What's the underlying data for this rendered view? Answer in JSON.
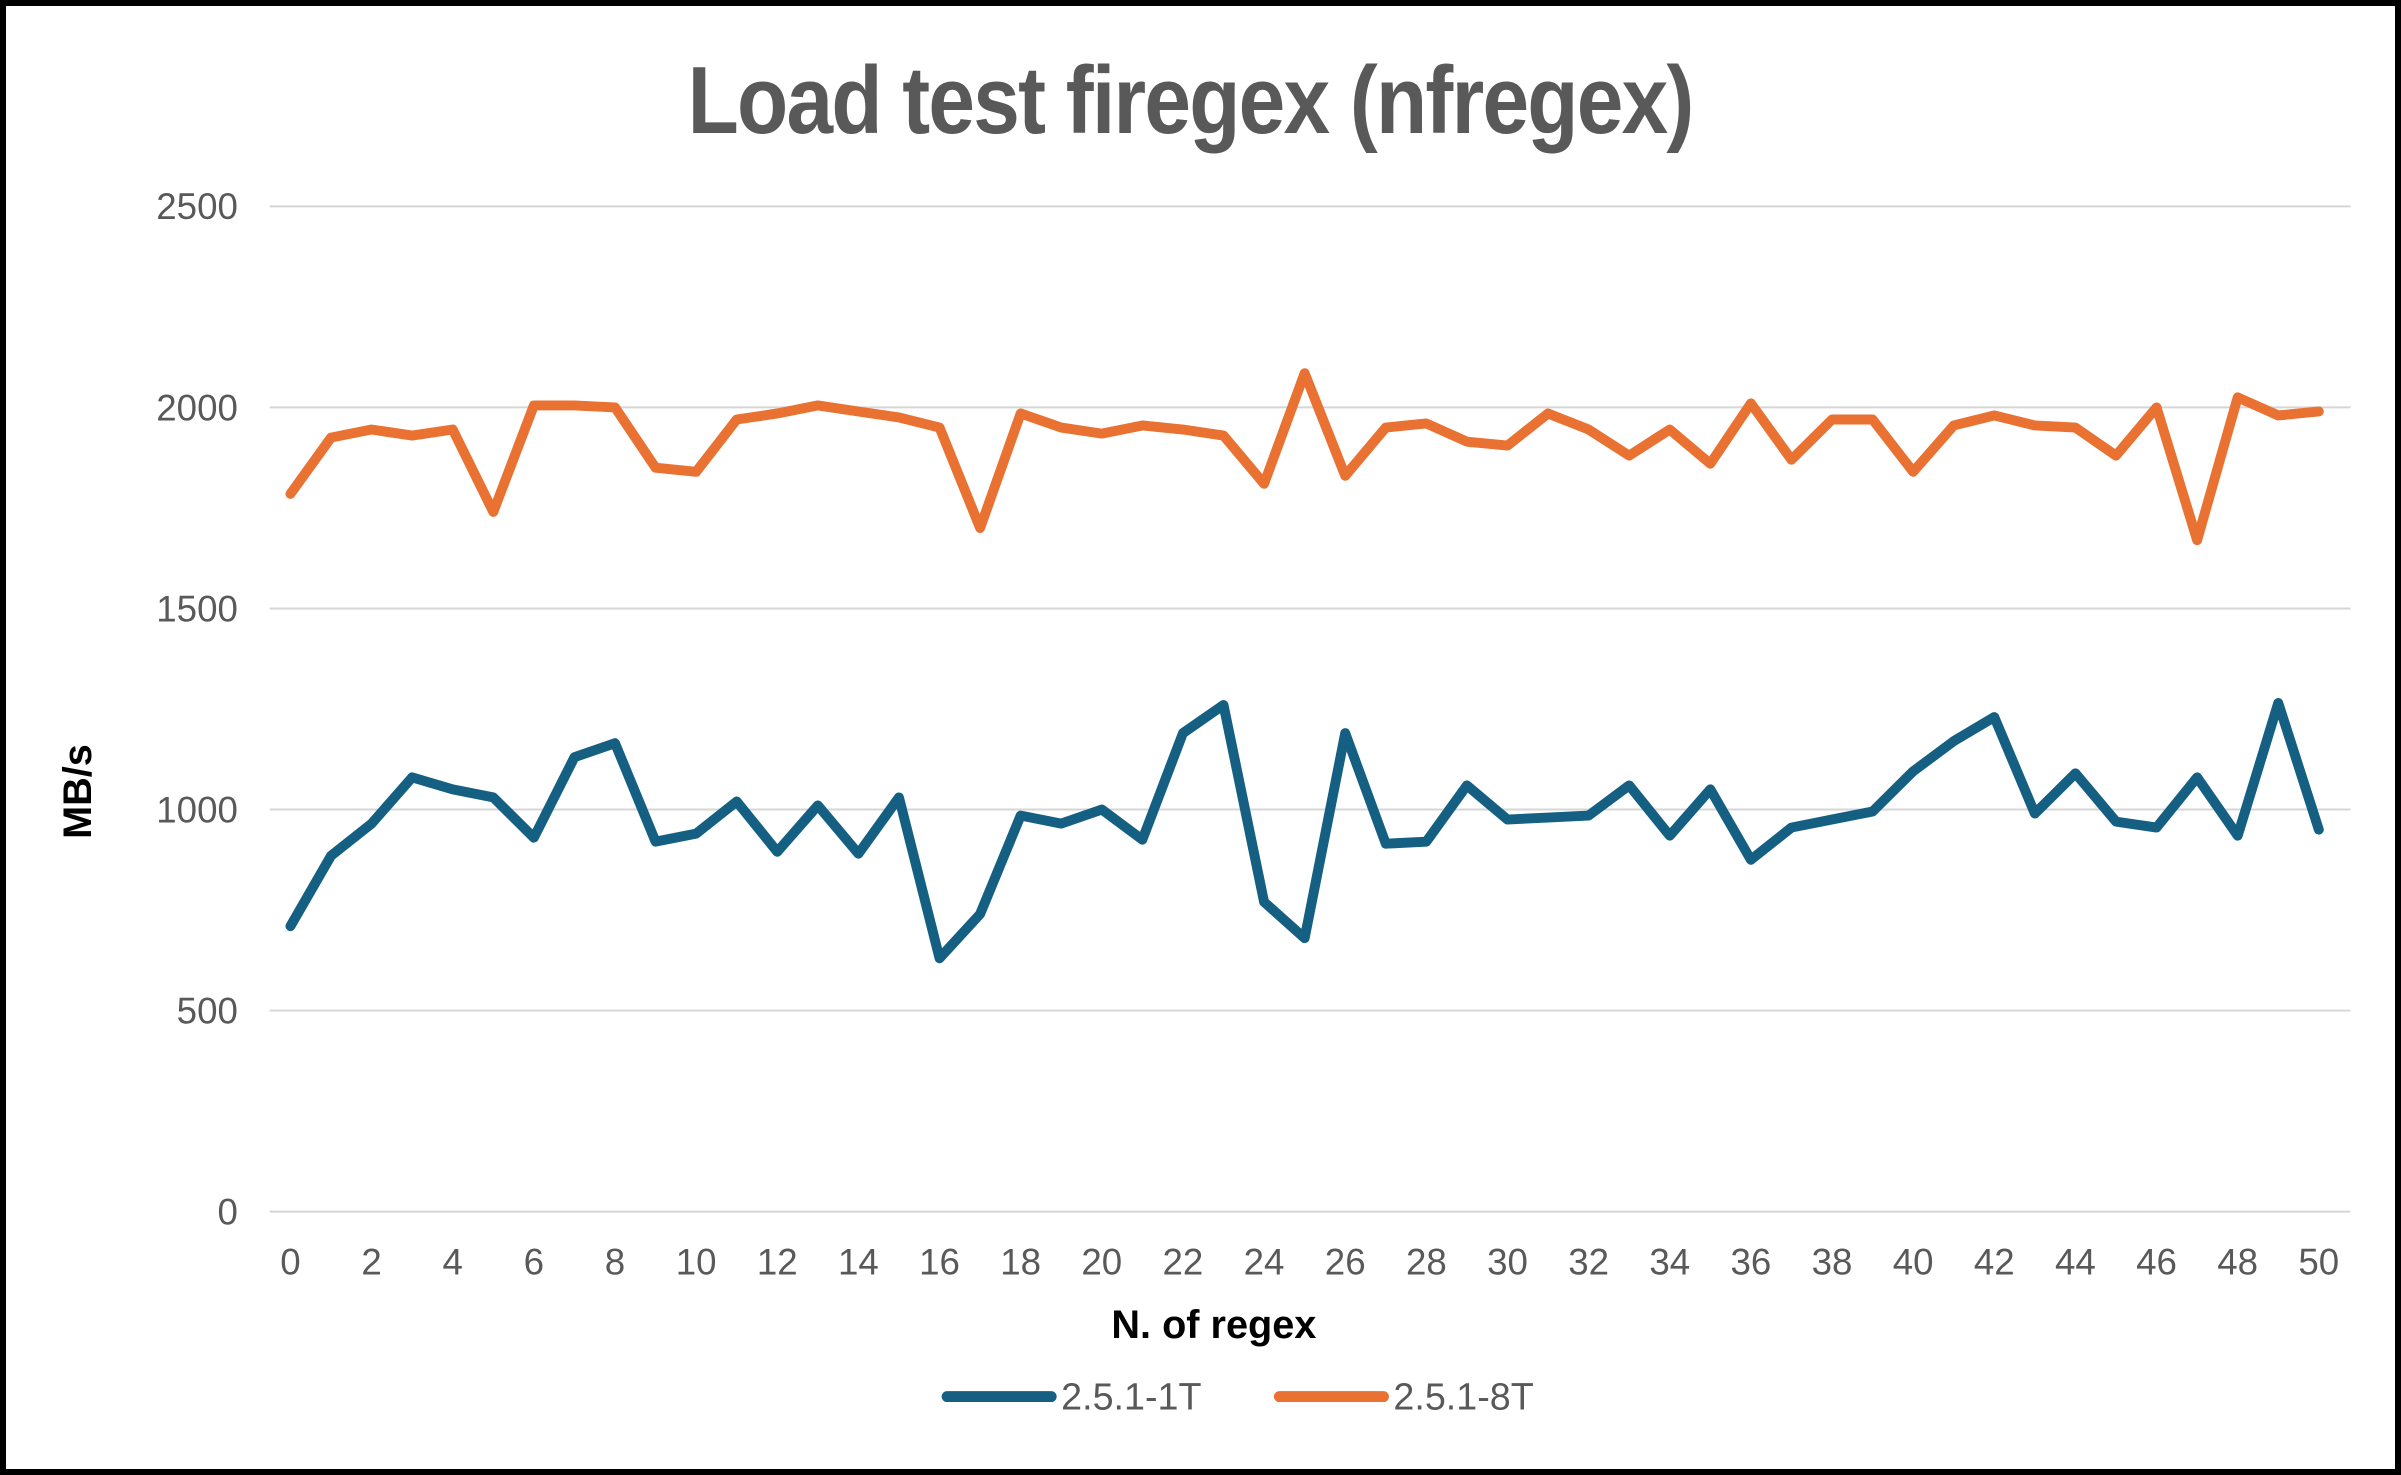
{
  "title": "Load test firegex (nfregex)",
  "colors": {
    "series1_blue": "#156082",
    "series2_orange": "#E97132",
    "title_gray": "#595959",
    "tick_gray": "#595959",
    "gridline_gray": "#D6D6D6",
    "axis_title_black": "#000000",
    "background": "#FFFFFF",
    "frame_border": "#000000"
  },
  "chart_data": {
    "type": "line",
    "title": "Load test firegex (nfregex)",
    "xlabel": "N. of regex",
    "ylabel": "MB/s",
    "x": [
      0,
      1,
      2,
      3,
      4,
      5,
      6,
      7,
      8,
      9,
      10,
      11,
      12,
      13,
      14,
      15,
      16,
      17,
      18,
      19,
      20,
      21,
      22,
      23,
      24,
      25,
      26,
      27,
      28,
      29,
      30,
      31,
      32,
      33,
      34,
      35,
      36,
      37,
      38,
      39,
      40,
      41,
      42,
      43,
      44,
      45,
      46,
      47,
      48,
      49,
      50
    ],
    "x_tick_labels": [
      "0",
      "2",
      "4",
      "6",
      "8",
      "10",
      "12",
      "14",
      "16",
      "18",
      "20",
      "22",
      "24",
      "26",
      "28",
      "30",
      "32",
      "34",
      "36",
      "38",
      "40",
      "42",
      "44",
      "46",
      "48",
      "50"
    ],
    "y_ticks": [
      0,
      500,
      1000,
      1500,
      2000,
      2500
    ],
    "ylim": [
      0,
      2500
    ],
    "grid": "horizontal",
    "legend_position": "bottom",
    "series": [
      {
        "name": "2.5.1-1T",
        "color": "#156082",
        "values": [
          710,
          885,
          965,
          1080,
          1050,
          1030,
          930,
          1130,
          1165,
          920,
          940,
          1020,
          895,
          1010,
          890,
          1030,
          630,
          740,
          985,
          965,
          1000,
          925,
          1190,
          1260,
          770,
          680,
          1190,
          915,
          920,
          1060,
          975,
          980,
          985,
          1060,
          935,
          1050,
          875,
          955,
          975,
          995,
          1095,
          1170,
          1230,
          990,
          1090,
          970,
          955,
          1080,
          935,
          1265,
          950
        ]
      },
      {
        "name": "2.5.1-8T",
        "color": "#E97132",
        "values": [
          1785,
          1925,
          1945,
          1930,
          1945,
          1740,
          2005,
          2005,
          2000,
          1850,
          1840,
          1970,
          1985,
          2005,
          1990,
          1975,
          1950,
          1700,
          1985,
          1950,
          1935,
          1955,
          1945,
          1930,
          1810,
          2085,
          1830,
          1950,
          1960,
          1915,
          1905,
          1985,
          1945,
          1880,
          1945,
          1860,
          2010,
          1870,
          1970,
          1970,
          1840,
          1955,
          1980,
          1955,
          1950,
          1880,
          2000,
          1670,
          2025,
          1980,
          1990
        ]
      }
    ]
  }
}
